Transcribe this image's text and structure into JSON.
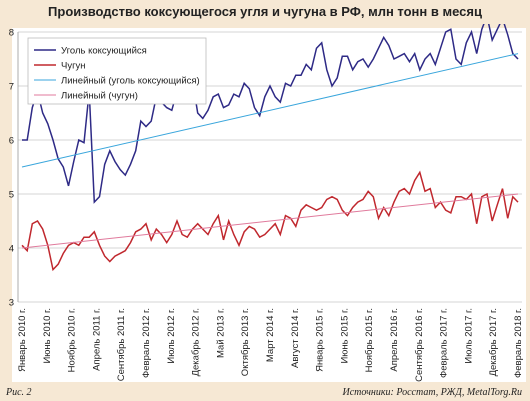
{
  "figure": {
    "fig_label": "Рис. 2",
    "sources": "Источники: Росстат, РЖД, MetalTorg.Ru"
  },
  "chart_data": {
    "type": "line",
    "title": "Производство коксующегося угля и чугуна в РФ, млн тонн в месяц",
    "xlabel": "",
    "ylabel": "",
    "ylim": [
      3,
      8
    ],
    "yticks": [
      3,
      4,
      5,
      6,
      7,
      8
    ],
    "grid": true,
    "legend_position": "top-left",
    "x_tick_labels": [
      "Январь 2010 г.",
      "Июнь 2010 г.",
      "Ноябрь 2010 г.",
      "Апрель 2011 г.",
      "Сентябрь 2011 г.",
      "Февраль 2012 г.",
      "Июль 2012 г.",
      "Декабрь 2012 г.",
      "Май 2013 г.",
      "Октябрь 2013 г.",
      "Март 2014 г.",
      "Август 2014 г.",
      "Январь 2015 г.",
      "Июнь 2015 г.",
      "Ноябрь 2015 г.",
      "Апрель 2016 г.",
      "Сентябрь 2016 г.",
      "Февраль 2017 г.",
      "Июль 2017 г.",
      "Декабрь 2017 г.",
      "Февраль 2018 г."
    ],
    "series": [
      {
        "name": "Уголь коксующийся",
        "color": "#2e2a86",
        "values": [
          6.0,
          6.0,
          6.6,
          6.9,
          6.5,
          6.3,
          6.0,
          5.65,
          5.5,
          5.15,
          5.6,
          6.0,
          5.95,
          6.9,
          4.85,
          4.95,
          5.55,
          5.8,
          5.6,
          5.45,
          5.35,
          5.55,
          5.8,
          6.35,
          6.25,
          6.35,
          6.8,
          6.7,
          6.6,
          6.55,
          6.9,
          7.4,
          7.7,
          7.1,
          6.5,
          6.4,
          6.55,
          6.8,
          6.85,
          6.6,
          6.65,
          6.85,
          6.8,
          7.05,
          6.95,
          6.6,
          6.45,
          6.8,
          7.0,
          6.8,
          6.7,
          7.05,
          7.0,
          7.2,
          7.2,
          7.4,
          7.3,
          7.7,
          7.8,
          7.3,
          7.0,
          7.15,
          7.55,
          7.55,
          7.3,
          7.45,
          7.5,
          7.35,
          7.5,
          7.7,
          7.9,
          7.75,
          7.5,
          7.55,
          7.6,
          7.45,
          7.6,
          7.3,
          7.5,
          7.6,
          7.4,
          7.7,
          8.0,
          8.05,
          7.5,
          7.4,
          7.8,
          8.0,
          7.6,
          8.05,
          8.3,
          7.85,
          8.05,
          8.25,
          7.95,
          7.6,
          7.5
        ]
      },
      {
        "name": "Чугун",
        "color": "#c0282e",
        "values": [
          4.05,
          3.95,
          4.45,
          4.5,
          4.35,
          4.05,
          3.6,
          3.7,
          3.9,
          4.05,
          4.1,
          4.05,
          4.2,
          4.2,
          4.3,
          4.05,
          3.85,
          3.75,
          3.85,
          3.9,
          3.95,
          4.1,
          4.3,
          4.35,
          4.45,
          4.15,
          4.35,
          4.25,
          4.1,
          4.25,
          4.5,
          4.25,
          4.2,
          4.35,
          4.45,
          4.35,
          4.25,
          4.45,
          4.6,
          4.15,
          4.5,
          4.25,
          4.05,
          4.3,
          4.4,
          4.35,
          4.2,
          4.25,
          4.35,
          4.45,
          4.25,
          4.6,
          4.55,
          4.4,
          4.7,
          4.8,
          4.75,
          4.7,
          4.75,
          4.9,
          4.95,
          4.9,
          4.7,
          4.6,
          4.75,
          4.85,
          4.9,
          5.05,
          4.95,
          4.55,
          4.75,
          4.6,
          4.85,
          5.05,
          5.1,
          5.0,
          5.25,
          5.4,
          5.05,
          5.1,
          4.75,
          4.85,
          4.7,
          4.65,
          4.95,
          4.95,
          4.9,
          5.0,
          4.45,
          4.95,
          5.0,
          4.5,
          4.8,
          5.1,
          4.55,
          4.95,
          4.85
        ]
      },
      {
        "name": "Линейный (уголь коксующийся)",
        "color": "#3aa6dc",
        "trend": true,
        "values": [
          5.5,
          7.6
        ]
      },
      {
        "name": "Линейный (чугун)",
        "color": "#e07a9c",
        "trend": true,
        "values": [
          4.0,
          5.0
        ]
      }
    ]
  }
}
